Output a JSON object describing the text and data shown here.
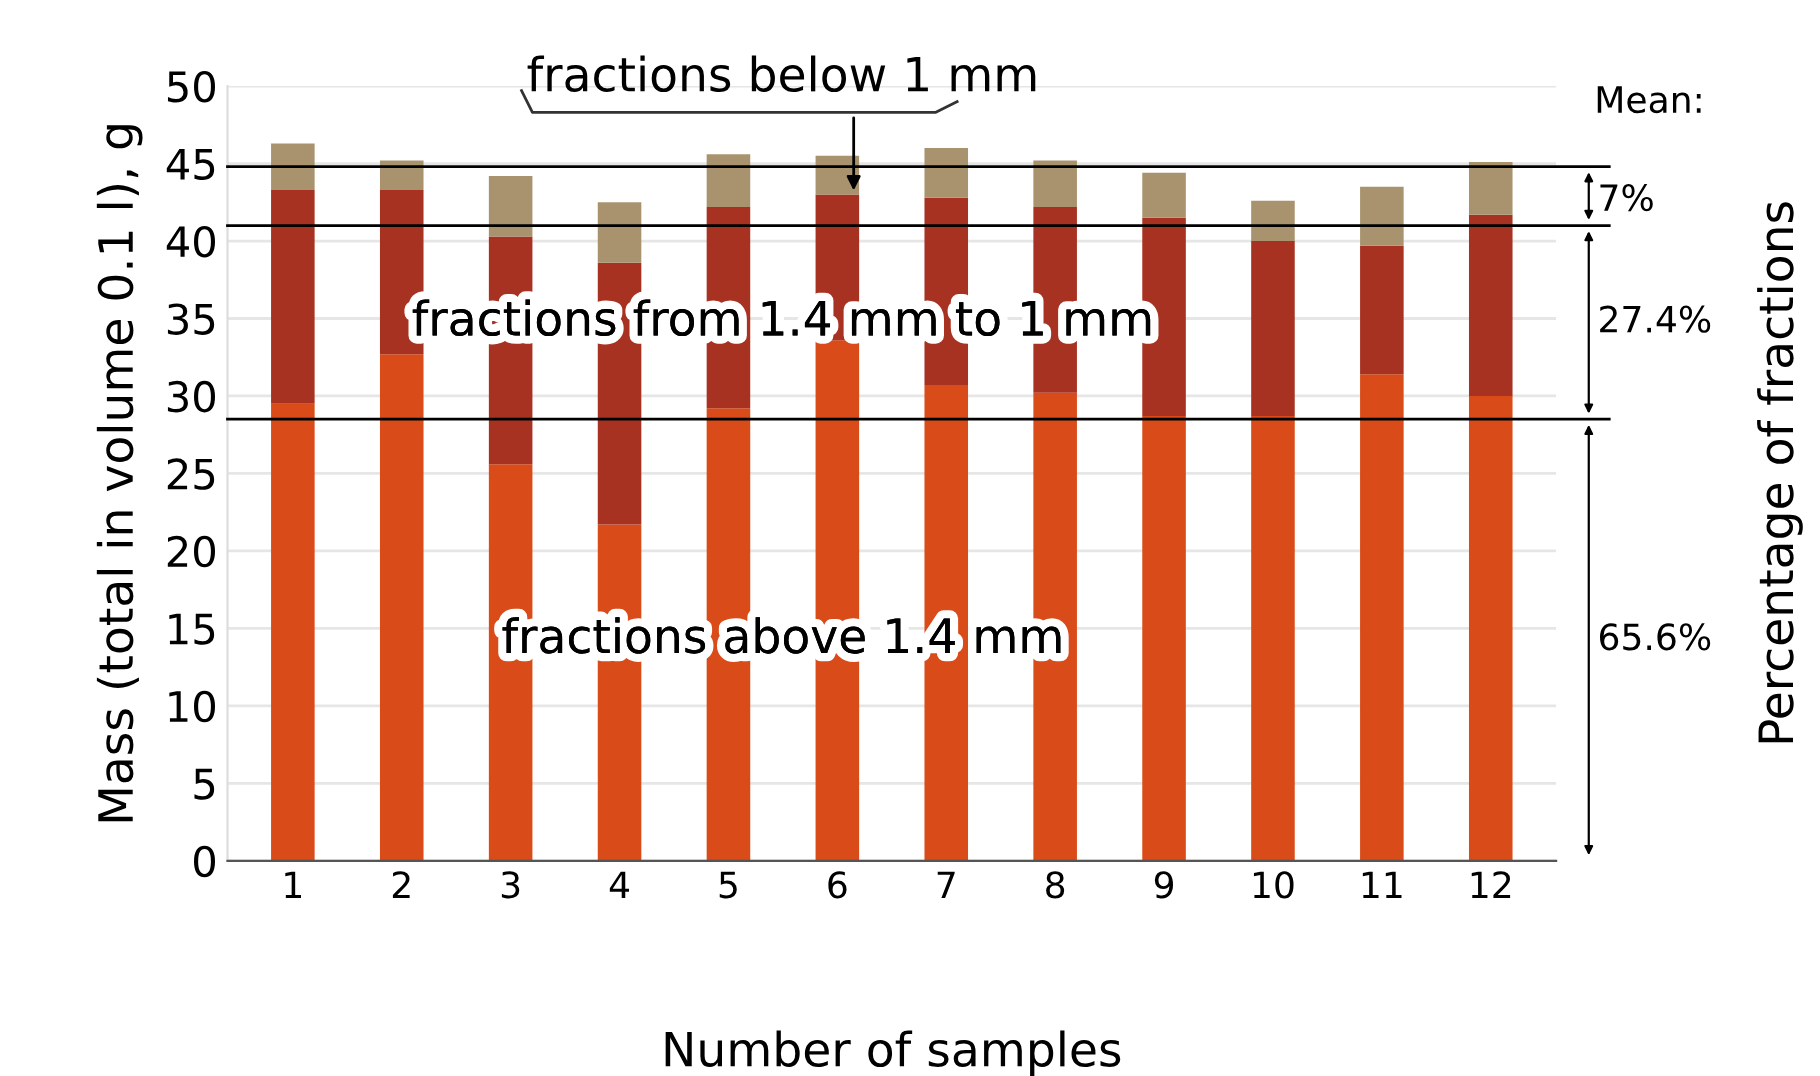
{
  "chart_data": {
    "type": "bar",
    "stacked": true,
    "xlabel": "Number of samples",
    "ylabel": "Mass (total in volume 0.1 l), g",
    "y2label": "Percentage of fractions",
    "categories": [
      "1",
      "2",
      "3",
      "4",
      "5",
      "6",
      "7",
      "8",
      "9",
      "10",
      "11",
      "12"
    ],
    "series": [
      {
        "name": "fractions above 1.4 mm",
        "color": "#d94b18",
        "values": [
          29.5,
          32.7,
          25.6,
          21.7,
          29.2,
          33.6,
          30.7,
          30.2,
          28.7,
          28.7,
          31.4,
          30.0
        ]
      },
      {
        "name": "fractions from 1.4 mm to 1 mm",
        "color": "#a83222",
        "values": [
          13.8,
          10.6,
          14.7,
          16.9,
          13.0,
          9.4,
          12.1,
          12.0,
          12.8,
          11.3,
          8.3,
          11.7
        ]
      },
      {
        "name": "fractions below 1 mm",
        "color": "#a8936e",
        "values": [
          3.0,
          1.9,
          3.9,
          3.9,
          3.4,
          2.5,
          3.2,
          3.0,
          2.9,
          2.6,
          3.8,
          3.4
        ]
      }
    ],
    "ylim": [
      0,
      50
    ],
    "yticks": [
      0,
      5,
      10,
      15,
      20,
      25,
      30,
      35,
      40,
      45,
      50
    ],
    "grid": "y",
    "ref_lines": [
      {
        "axis": "y",
        "value": 44.8,
        "color": "#000000"
      },
      {
        "axis": "y",
        "value": 41.0,
        "color": "#000000"
      },
      {
        "axis": "y",
        "value": 28.5,
        "color": "#000000"
      }
    ],
    "annotations": [
      "Mean:",
      "7%",
      "27.4%",
      "65.6%"
    ]
  }
}
